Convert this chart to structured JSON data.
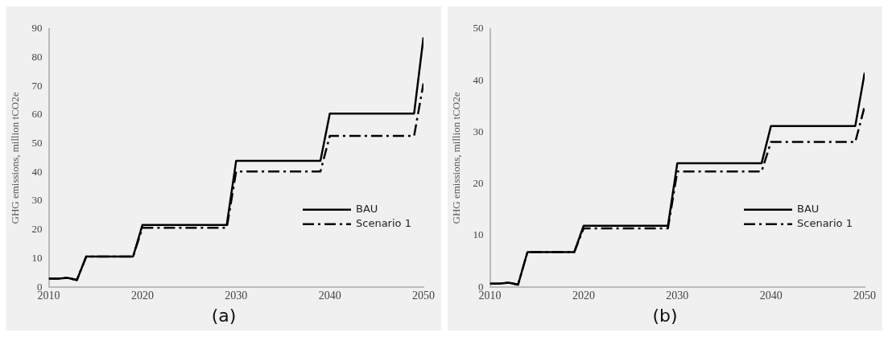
{
  "chart_data": [
    {
      "type": "line",
      "ylabel": "GHG emissions, million tCO2e",
      "annotations": [
        "(a)"
      ],
      "xlim": [
        2010,
        2050
      ],
      "xticks": [
        2010,
        2020,
        2030,
        2040,
        2050
      ],
      "ylim": [
        0,
        90
      ],
      "yticks": [
        0,
        10,
        20,
        30,
        40,
        50,
        60,
        70,
        80,
        90
      ],
      "grid": false,
      "legend": "right",
      "marker": "none",
      "x": [
        2010,
        2011,
        2012,
        2013,
        2014,
        2019,
        2020,
        2029,
        2030,
        2039,
        2040,
        2049,
        2050
      ],
      "series": [
        {
          "name": "BAU",
          "color": "#000000",
          "line_style": "solid",
          "values": [
            3,
            3,
            3.3,
            2.5,
            10.7,
            10.7,
            21.7,
            21.7,
            44,
            44,
            60.5,
            60.5,
            87
          ]
        },
        {
          "name": "Scenario 1",
          "color": "#000000",
          "line_style": "dashed",
          "values": [
            3,
            3,
            3.3,
            2.5,
            10.7,
            10.7,
            20.7,
            20.7,
            40.3,
            40.3,
            52.7,
            52.7,
            71
          ]
        }
      ]
    },
    {
      "type": "line",
      "ylabel": "GHG emissions, million tCO2e",
      "annotations": [
        "(b)"
      ],
      "xlim": [
        2010,
        2050
      ],
      "xticks": [
        2010,
        2020,
        2030,
        2040,
        2050
      ],
      "ylim": [
        0,
        50
      ],
      "yticks": [
        0,
        10,
        20,
        30,
        40,
        50
      ],
      "grid": false,
      "legend": "right",
      "marker": "none",
      "x": [
        2010,
        2011,
        2012,
        2013,
        2014,
        2019,
        2020,
        2029,
        2030,
        2039,
        2040,
        2049,
        2050
      ],
      "series": [
        {
          "name": "BAU",
          "color": "#000000",
          "line_style": "solid",
          "values": [
            0.7,
            0.7,
            0.9,
            0.5,
            6.8,
            6.8,
            11.9,
            11.9,
            24,
            24,
            31.2,
            31.2,
            41.5
          ]
        },
        {
          "name": "Scenario 1",
          "color": "#000000",
          "line_style": "dashed",
          "values": [
            0.7,
            0.7,
            0.9,
            0.5,
            6.8,
            6.8,
            11.4,
            11.4,
            22.4,
            22.4,
            28.1,
            28.1,
            35
          ]
        }
      ]
    }
  ]
}
